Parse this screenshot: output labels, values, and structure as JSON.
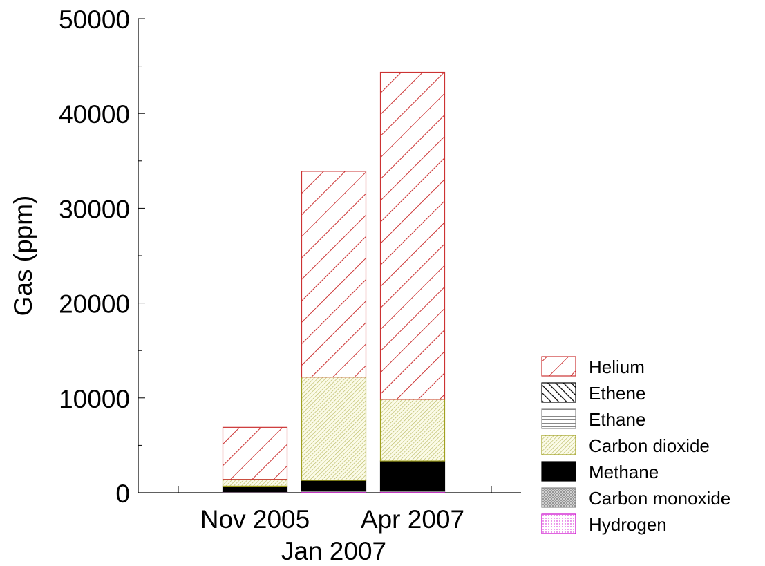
{
  "chart_data": {
    "type": "bar",
    "stacked": true,
    "ylabel": "Gas (ppm)",
    "ylim": [
      0,
      50000
    ],
    "yticks": [
      "0",
      "10000",
      "20000",
      "30000",
      "40000",
      "50000"
    ],
    "categories": [
      "Nov 2005",
      "Jan 2007",
      "Apr 2007"
    ],
    "series": [
      {
        "name": "Hydrogen",
        "color": "#cc00cc",
        "pattern": "dots",
        "values": [
          50,
          100,
          100
        ]
      },
      {
        "name": "Carbon monoxide",
        "color": "#888888",
        "pattern": "crosshatch",
        "values": [
          50,
          100,
          150
        ]
      },
      {
        "name": "Methane",
        "color": "#000000",
        "pattern": "solid",
        "values": [
          600,
          1100,
          3100
        ]
      },
      {
        "name": "Carbon dioxide",
        "color": "#a0a020",
        "pattern": "dense",
        "values": [
          700,
          10900,
          6500
        ]
      },
      {
        "name": "Ethane",
        "color": "#888888",
        "pattern": "horizontal",
        "values": [
          0,
          0,
          0
        ]
      },
      {
        "name": "Ethene",
        "color": "#000000",
        "pattern": "backdiag",
        "values": [
          0,
          0,
          0
        ]
      },
      {
        "name": "Helium",
        "color": "#cc3333",
        "pattern": "diag",
        "values": [
          5500,
          21700,
          34500
        ]
      }
    ],
    "legend": {
      "position": "bottom-right",
      "order": [
        "Helium",
        "Ethene",
        "Ethane",
        "Carbon dioxide",
        "Methane",
        "Carbon monoxide",
        "Hydrogen"
      ]
    },
    "grid": false
  }
}
